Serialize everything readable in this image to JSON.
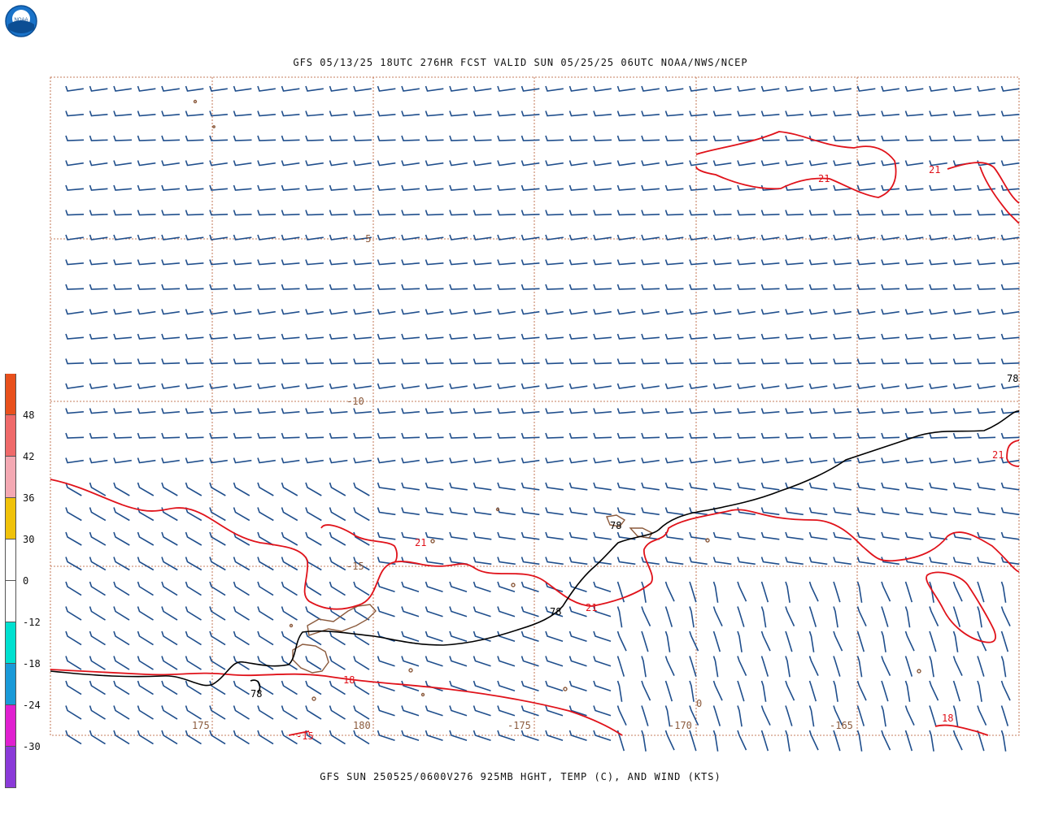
{
  "header": {
    "title": "GFS 05/13/25 18UTC 276HR FCST VALID SUN 05/25/25 06UTC NOAA/NWS/NCEP",
    "logo_text": "NOAA"
  },
  "footer": {
    "title": "GFS SUN 250525/0600V276 925MB HGHT, TEMP (C), AND WIND (KTS)"
  },
  "colorbar": {
    "labels": [
      "48",
      "42",
      "36",
      "30",
      "0",
      "-12",
      "-18",
      "-24",
      "-30"
    ],
    "colors": [
      "#e8501c",
      "#ef6a6a",
      "#f4a9b3",
      "#f0c20a",
      "#ffffff",
      "#ffffff",
      "#00e0d0",
      "#1a9ad8",
      "#e020d0",
      "#8a3ad8"
    ]
  },
  "map": {
    "latitude_labels": [
      "-5",
      "-10",
      "-15"
    ],
    "longitude_labels": [
      "175",
      "180",
      "-175",
      "-170",
      "-165"
    ],
    "longitude_tick_label_secondary": "-15",
    "height_contour_labels": [
      "78",
      "78",
      "78",
      "78"
    ],
    "temperature_contour_labels": [
      "21",
      "21",
      "21",
      "21",
      "21",
      "18",
      "18"
    ],
    "extra_label": "0",
    "colors": {
      "grid": "#b4532a",
      "wind_barb": "#1f4e8c",
      "temp_contour": "#e0121a",
      "height_contour": "#000000",
      "coastline": "#8b5a3c"
    }
  }
}
